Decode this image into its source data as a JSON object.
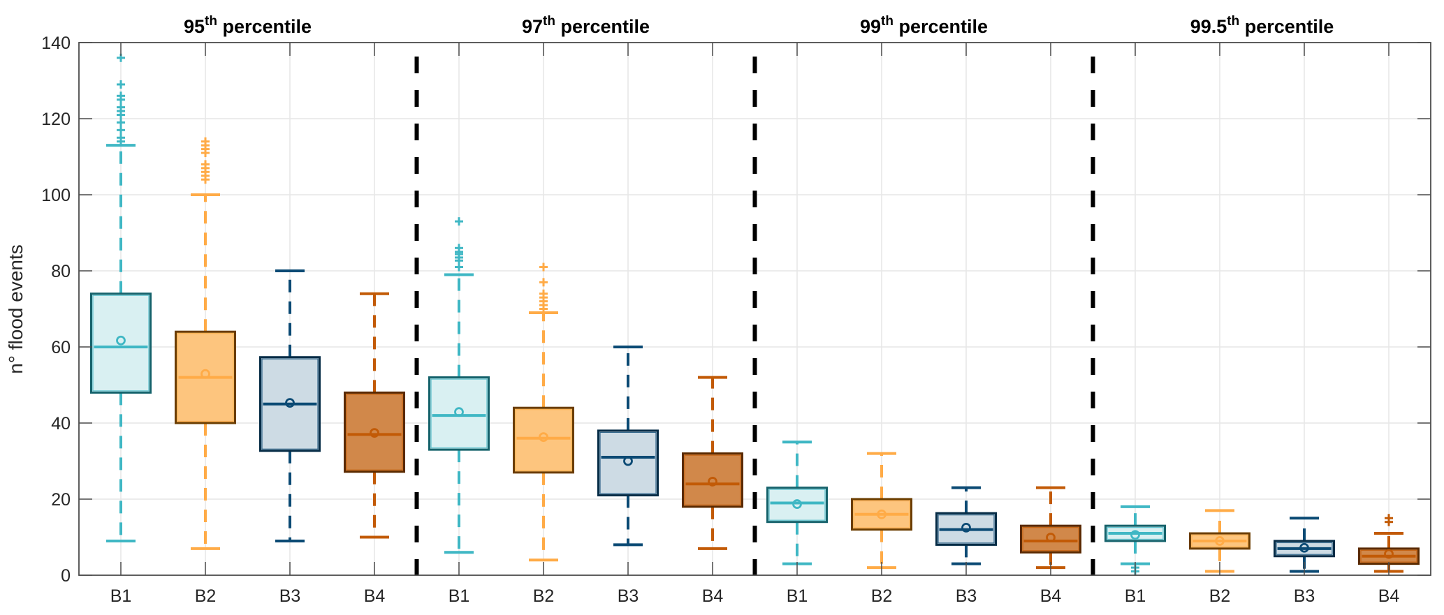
{
  "chart_data": {
    "type": "boxplot",
    "ylabel": "n° flood events",
    "xlabel": "",
    "ylim": [
      0,
      140
    ],
    "yticks": [
      0,
      20,
      40,
      60,
      80,
      100,
      120,
      140
    ],
    "grid": true,
    "legend": "none",
    "box_categories": [
      "B1",
      "B2",
      "B3",
      "B4"
    ],
    "colors": {
      "B1": {
        "line": "#3fb7c4",
        "fill": "#d9f0f2",
        "edge": "#15626b"
      },
      "B2": {
        "line": "#ffab47",
        "fill": "#fdc57e",
        "edge": "#6b3d00"
      },
      "B3": {
        "line": "#0b4a74",
        "fill": "#cddbe4",
        "edge": "#062c46"
      },
      "B4": {
        "line": "#c25a06",
        "fill": "#d1884a",
        "edge": "#5a2a00"
      }
    },
    "separator_color": "#000000",
    "groups": [
      {
        "title_main": "95",
        "title_sup": "th",
        "title_rest": " percentile",
        "boxes": [
          {
            "category": "B1",
            "whisker_low": 9,
            "q1": 48,
            "median": 60,
            "q3": 74,
            "whisker_high": 113,
            "mean": 61.7,
            "outliers": [
              114,
              115,
              117,
              119,
              121,
              122,
              123,
              125,
              126,
              129,
              136
            ]
          },
          {
            "category": "B2",
            "whisker_low": 7,
            "q1": 40,
            "median": 52,
            "q3": 64,
            "whisker_high": 100,
            "mean": 52.9,
            "outliers": [
              104,
              105,
              106,
              107,
              108,
              111,
              112,
              113,
              114
            ]
          },
          {
            "category": "B3",
            "whisker_low": 9,
            "q1": 32.7,
            "median": 45,
            "q3": 57.3,
            "whisker_high": 80,
            "mean": 45.3,
            "outliers": []
          },
          {
            "category": "B4",
            "whisker_low": 10,
            "q1": 27.2,
            "median": 37,
            "q3": 48,
            "whisker_high": 74,
            "mean": 37.4,
            "outliers": []
          }
        ]
      },
      {
        "title_main": "97",
        "title_sup": "th",
        "title_rest": " percentile",
        "boxes": [
          {
            "category": "B1",
            "whisker_low": 6,
            "q1": 33,
            "median": 42,
            "q3": 52,
            "whisker_high": 79,
            "mean": 42.9,
            "outliers": [
              81,
              82.7,
              83.5,
              84.4,
              85,
              86,
              93
            ]
          },
          {
            "category": "B2",
            "whisker_low": 4,
            "q1": 27,
            "median": 36,
            "q3": 44,
            "whisker_high": 69,
            "mean": 36.3,
            "outliers": [
              70,
              71,
              72,
              73,
              74,
              77,
              81
            ]
          },
          {
            "category": "B3",
            "whisker_low": 8,
            "q1": 21,
            "median": 31,
            "q3": 38,
            "whisker_high": 60,
            "mean": 30,
            "outliers": []
          },
          {
            "category": "B4",
            "whisker_low": 7,
            "q1": 18,
            "median": 24,
            "q3": 32,
            "whisker_high": 52,
            "mean": 24.6,
            "outliers": []
          }
        ]
      },
      {
        "title_main": "99",
        "title_sup": "th",
        "title_rest": " percentile",
        "boxes": [
          {
            "category": "B1",
            "whisker_low": 3,
            "q1": 14,
            "median": 19,
            "q3": 23,
            "whisker_high": 35,
            "mean": 18.7,
            "outliers": []
          },
          {
            "category": "B2",
            "whisker_low": 2,
            "q1": 12,
            "median": 16,
            "q3": 20,
            "whisker_high": 32,
            "mean": 16,
            "outliers": []
          },
          {
            "category": "B3",
            "whisker_low": 3,
            "q1": 8,
            "median": 12,
            "q3": 16.3,
            "whisker_high": 23,
            "mean": 12.5,
            "outliers": []
          },
          {
            "category": "B4",
            "whisker_low": 2,
            "q1": 6,
            "median": 9,
            "q3": 13,
            "whisker_high": 23,
            "mean": 9.9,
            "outliers": []
          }
        ]
      },
      {
        "title_main": "99.5",
        "title_sup": "th",
        "title_rest": " percentile",
        "boxes": [
          {
            "category": "B1",
            "whisker_low": 3,
            "q1": 9,
            "median": 11,
            "q3": 13,
            "whisker_high": 18,
            "mean": 10.6,
            "outliers": [
              1,
              2
            ]
          },
          {
            "category": "B2",
            "whisker_low": 1,
            "q1": 7,
            "median": 9,
            "q3": 11,
            "whisker_high": 17,
            "mean": 9,
            "outliers": []
          },
          {
            "category": "B3",
            "whisker_low": 1,
            "q1": 5,
            "median": 7,
            "q3": 9,
            "whisker_high": 15,
            "mean": 7.2,
            "outliers": []
          },
          {
            "category": "B4",
            "whisker_low": 1,
            "q1": 3,
            "median": 5,
            "q3": 7,
            "whisker_high": 11,
            "mean": 5.6,
            "outliers": [
              14,
              15
            ]
          }
        ]
      }
    ]
  }
}
